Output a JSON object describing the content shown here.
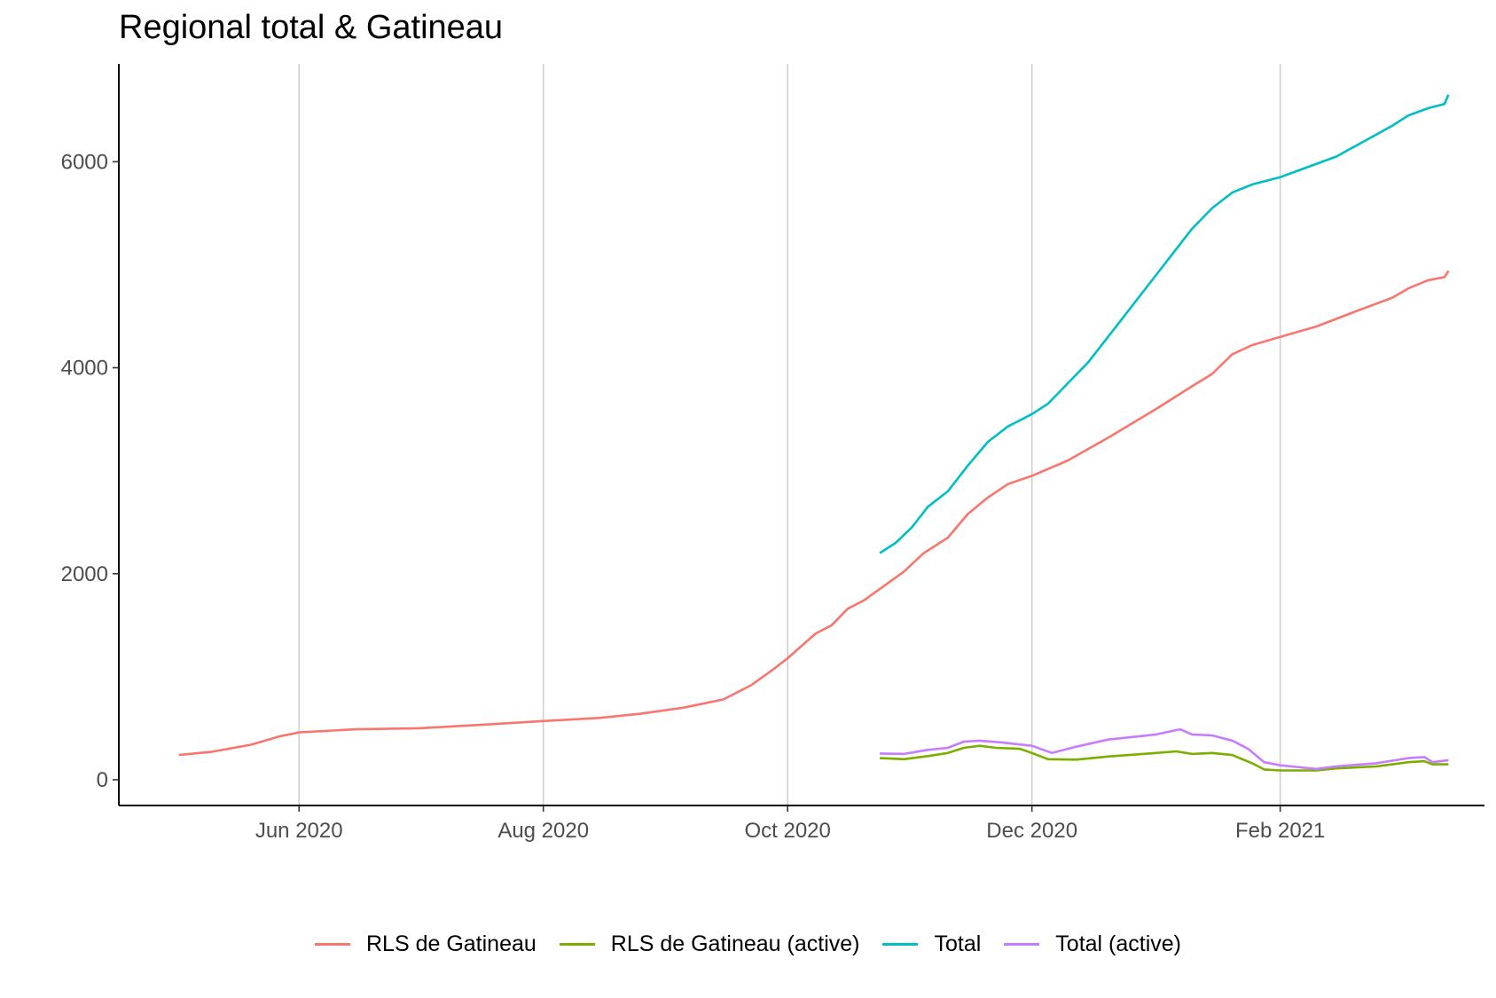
{
  "chart_data": {
    "type": "line",
    "title": "Regional total & Gatineau",
    "xlabel": "",
    "ylabel": "",
    "x_axis": {
      "kind": "date",
      "range": [
        "2020-04-17",
        "2021-03-24"
      ],
      "ticks": [
        {
          "date": "2020-06-01",
          "label": "Jun 2020"
        },
        {
          "date": "2020-08-01",
          "label": "Aug 2020"
        },
        {
          "date": "2020-10-01",
          "label": "Oct 2020"
        },
        {
          "date": "2020-12-01",
          "label": "Dec 2020"
        },
        {
          "date": "2021-02-01",
          "label": "Feb 2021"
        }
      ]
    },
    "y_axis": {
      "range": [
        -250,
        6950
      ],
      "ticks": [
        {
          "value": 0,
          "label": "0"
        },
        {
          "value": 2000,
          "label": "2000"
        },
        {
          "value": 4000,
          "label": "4000"
        },
        {
          "value": 6000,
          "label": "6000"
        }
      ]
    },
    "grid": "vertical major lines at x ticks",
    "legend_position": "bottom",
    "series": [
      {
        "name": "RLS de Gatineau",
        "color": "#F8766D",
        "points": [
          [
            "2020-05-02",
            240
          ],
          [
            "2020-05-10",
            270
          ],
          [
            "2020-05-20",
            340
          ],
          [
            "2020-05-27",
            420
          ],
          [
            "2020-06-01",
            460
          ],
          [
            "2020-06-15",
            490
          ],
          [
            "2020-07-01",
            500
          ],
          [
            "2020-07-15",
            530
          ],
          [
            "2020-08-01",
            570
          ],
          [
            "2020-08-15",
            600
          ],
          [
            "2020-08-25",
            640
          ],
          [
            "2020-09-05",
            700
          ],
          [
            "2020-09-15",
            780
          ],
          [
            "2020-09-22",
            920
          ],
          [
            "2020-09-27",
            1060
          ],
          [
            "2020-10-01",
            1180
          ],
          [
            "2020-10-08",
            1420
          ],
          [
            "2020-10-12",
            1500
          ],
          [
            "2020-10-16",
            1660
          ],
          [
            "2020-10-20",
            1740
          ],
          [
            "2020-10-25",
            1880
          ],
          [
            "2020-10-30",
            2020
          ],
          [
            "2020-11-04",
            2200
          ],
          [
            "2020-11-10",
            2350
          ],
          [
            "2020-11-15",
            2580
          ],
          [
            "2020-11-20",
            2740
          ],
          [
            "2020-11-25",
            2870
          ],
          [
            "2020-12-01",
            2950
          ],
          [
            "2020-12-10",
            3100
          ],
          [
            "2020-12-20",
            3320
          ],
          [
            "2021-01-01",
            3600
          ],
          [
            "2021-01-10",
            3820
          ],
          [
            "2021-01-15",
            3940
          ],
          [
            "2021-01-20",
            4130
          ],
          [
            "2021-01-25",
            4220
          ],
          [
            "2021-02-01",
            4300
          ],
          [
            "2021-02-10",
            4400
          ],
          [
            "2021-02-20",
            4550
          ],
          [
            "2021-03-01",
            4680
          ],
          [
            "2021-03-05",
            4770
          ],
          [
            "2021-03-10",
            4850
          ],
          [
            "2021-03-14",
            4880
          ],
          [
            "2021-03-15",
            4940
          ]
        ]
      },
      {
        "name": "RLS de Gatineau (active)",
        "color": "#7CAE00",
        "points": [
          [
            "2020-10-24",
            210
          ],
          [
            "2020-10-30",
            200
          ],
          [
            "2020-11-05",
            230
          ],
          [
            "2020-11-10",
            260
          ],
          [
            "2020-11-14",
            310
          ],
          [
            "2020-11-18",
            330
          ],
          [
            "2020-11-22",
            310
          ],
          [
            "2020-11-28",
            300
          ],
          [
            "2020-12-01",
            260
          ],
          [
            "2020-12-05",
            200
          ],
          [
            "2020-12-12",
            195
          ],
          [
            "2020-12-20",
            225
          ],
          [
            "2021-01-01",
            260
          ],
          [
            "2021-01-06",
            275
          ],
          [
            "2021-01-10",
            250
          ],
          [
            "2021-01-15",
            260
          ],
          [
            "2021-01-20",
            240
          ],
          [
            "2021-01-25",
            160
          ],
          [
            "2021-01-28",
            100
          ],
          [
            "2021-02-01",
            90
          ],
          [
            "2021-02-10",
            90
          ],
          [
            "2021-02-15",
            110
          ],
          [
            "2021-02-25",
            130
          ],
          [
            "2021-03-05",
            170
          ],
          [
            "2021-03-09",
            180
          ],
          [
            "2021-03-11",
            150
          ],
          [
            "2021-03-15",
            150
          ]
        ]
      },
      {
        "name": "Total",
        "color": "#00BFC4",
        "points": [
          [
            "2020-10-24",
            2200
          ],
          [
            "2020-10-28",
            2300
          ],
          [
            "2020-11-01",
            2450
          ],
          [
            "2020-11-05",
            2650
          ],
          [
            "2020-11-10",
            2800
          ],
          [
            "2020-11-15",
            3050
          ],
          [
            "2020-11-20",
            3280
          ],
          [
            "2020-11-25",
            3430
          ],
          [
            "2020-12-01",
            3550
          ],
          [
            "2020-12-05",
            3650
          ],
          [
            "2020-12-10",
            3850
          ],
          [
            "2020-12-15",
            4050
          ],
          [
            "2020-12-20",
            4300
          ],
          [
            "2020-12-25",
            4550
          ],
          [
            "2021-01-01",
            4900
          ],
          [
            "2021-01-05",
            5100
          ],
          [
            "2021-01-10",
            5350
          ],
          [
            "2021-01-15",
            5550
          ],
          [
            "2021-01-20",
            5700
          ],
          [
            "2021-01-25",
            5780
          ],
          [
            "2021-02-01",
            5850
          ],
          [
            "2021-02-08",
            5950
          ],
          [
            "2021-02-15",
            6050
          ],
          [
            "2021-02-22",
            6200
          ],
          [
            "2021-03-01",
            6350
          ],
          [
            "2021-03-05",
            6450
          ],
          [
            "2021-03-10",
            6520
          ],
          [
            "2021-03-14",
            6560
          ],
          [
            "2021-03-15",
            6650
          ]
        ]
      },
      {
        "name": "Total (active)",
        "color": "#C77CFF",
        "points": [
          [
            "2020-10-24",
            255
          ],
          [
            "2020-10-30",
            250
          ],
          [
            "2020-11-05",
            290
          ],
          [
            "2020-11-10",
            310
          ],
          [
            "2020-11-14",
            370
          ],
          [
            "2020-11-18",
            380
          ],
          [
            "2020-11-24",
            360
          ],
          [
            "2020-12-01",
            330
          ],
          [
            "2020-12-06",
            260
          ],
          [
            "2020-12-12",
            320
          ],
          [
            "2020-12-20",
            390
          ],
          [
            "2021-01-01",
            440
          ],
          [
            "2021-01-07",
            490
          ],
          [
            "2021-01-10",
            440
          ],
          [
            "2021-01-15",
            430
          ],
          [
            "2021-01-20",
            380
          ],
          [
            "2021-01-24",
            300
          ],
          [
            "2021-01-28",
            170
          ],
          [
            "2021-02-01",
            140
          ],
          [
            "2021-02-10",
            105
          ],
          [
            "2021-02-15",
            130
          ],
          [
            "2021-02-25",
            160
          ],
          [
            "2021-03-05",
            210
          ],
          [
            "2021-03-09",
            220
          ],
          [
            "2021-03-11",
            170
          ],
          [
            "2021-03-15",
            190
          ]
        ]
      }
    ]
  }
}
